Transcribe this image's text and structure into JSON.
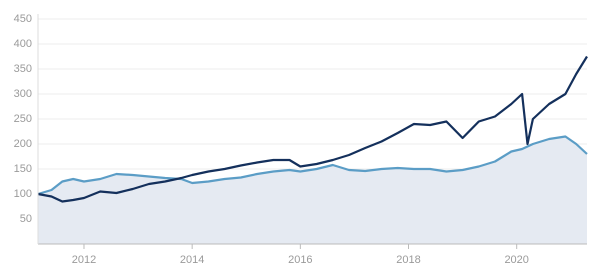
{
  "chart_data": {
    "type": "line",
    "x": [
      2011.15,
      2011.4,
      2011.6,
      2011.8,
      2012.0,
      2012.3,
      2012.6,
      2012.9,
      2013.2,
      2013.5,
      2013.8,
      2014.0,
      2014.3,
      2014.6,
      2014.9,
      2015.2,
      2015.5,
      2015.8,
      2016.0,
      2016.3,
      2016.6,
      2016.9,
      2017.2,
      2017.5,
      2017.8,
      2018.1,
      2018.4,
      2018.7,
      2019.0,
      2019.3,
      2019.6,
      2019.9,
      2020.1,
      2020.2,
      2020.3,
      2020.6,
      2020.9,
      2021.1,
      2021.3
    ],
    "series": [
      {
        "color": "#5b9dc6",
        "area": "#e5eaf2",
        "values": [
          100,
          108,
          125,
          130,
          125,
          130,
          140,
          138,
          135,
          132,
          130,
          122,
          125,
          130,
          133,
          140,
          145,
          148,
          145,
          150,
          158,
          148,
          146,
          150,
          152,
          150,
          150,
          145,
          148,
          155,
          165,
          185,
          190,
          195,
          200,
          210,
          215,
          200,
          180
        ]
      },
      {
        "color": "#14305c",
        "values": [
          100,
          95,
          85,
          88,
          92,
          105,
          102,
          110,
          120,
          125,
          132,
          138,
          145,
          150,
          157,
          163,
          168,
          168,
          155,
          160,
          168,
          178,
          192,
          205,
          222,
          240,
          238,
          245,
          212,
          245,
          255,
          280,
          300,
          200,
          250,
          280,
          300,
          340,
          375
        ]
      }
    ],
    "xlim": [
      2011.15,
      2021.3
    ],
    "xticks": [
      2012,
      2014,
      2016,
      2018,
      2020
    ],
    "ylim": [
      0,
      460
    ],
    "yticks": [
      50,
      100,
      150,
      200,
      250,
      300,
      350,
      400,
      450
    ],
    "grid": true
  }
}
